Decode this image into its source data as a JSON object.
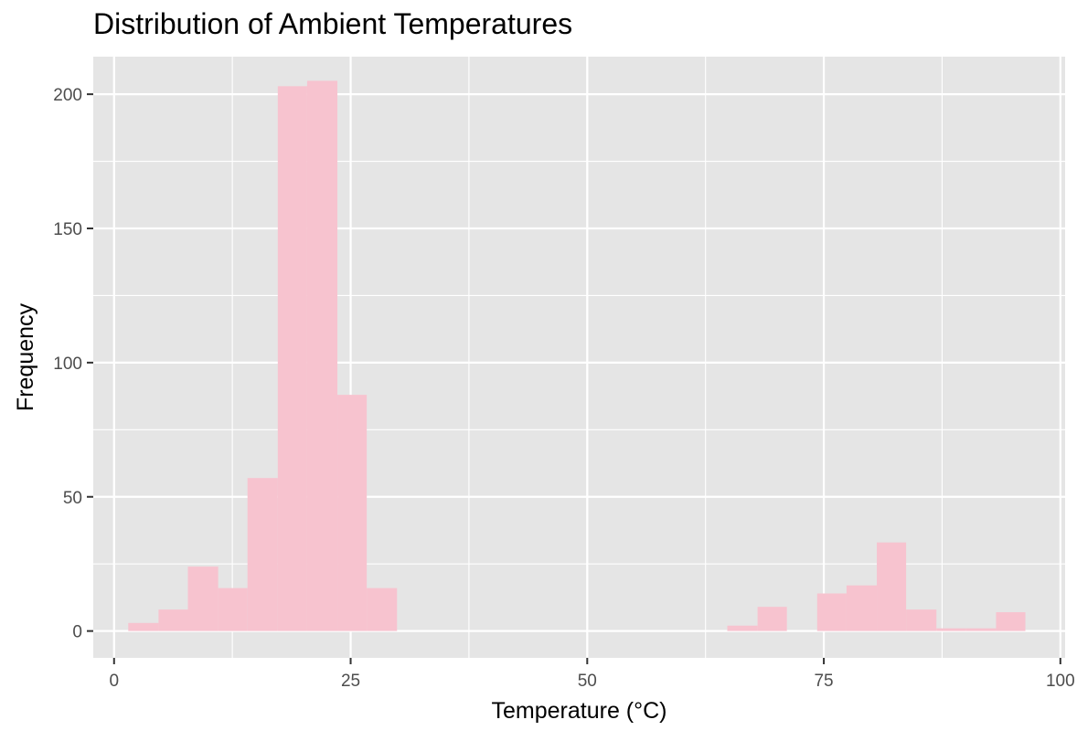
{
  "chart_data": {
    "type": "bar",
    "title": "Distribution of Ambient Temperatures",
    "xlabel": "Temperature (°C)",
    "ylabel": "Frequency",
    "xlim": [
      -2.2,
      100.5
    ],
    "ylim": [
      -10,
      214
    ],
    "x_ticks": [
      0,
      25,
      50,
      75,
      100
    ],
    "y_ticks": [
      0,
      50,
      100,
      150,
      200
    ],
    "grid": true,
    "colors": {
      "panel": "#E5E5E5",
      "grid": "#FFFFFF",
      "bar": "#F7C3CF",
      "text": "#4D4D4D"
    },
    "bins": [
      {
        "x0": 1.5,
        "x1": 4.7,
        "value": 3
      },
      {
        "x0": 4.7,
        "x1": 7.8,
        "value": 8
      },
      {
        "x0": 7.8,
        "x1": 11.0,
        "value": 24
      },
      {
        "x0": 11.0,
        "x1": 14.1,
        "value": 16
      },
      {
        "x0": 14.1,
        "x1": 17.3,
        "value": 57
      },
      {
        "x0": 17.3,
        "x1": 20.4,
        "value": 203
      },
      {
        "x0": 20.4,
        "x1": 23.6,
        "value": 205
      },
      {
        "x0": 23.6,
        "x1": 26.7,
        "value": 88
      },
      {
        "x0": 26.7,
        "x1": 29.9,
        "value": 16
      },
      {
        "x0": 64.8,
        "x1": 68.0,
        "value": 2
      },
      {
        "x0": 68.0,
        "x1": 71.1,
        "value": 9
      },
      {
        "x0": 74.3,
        "x1": 77.4,
        "value": 14
      },
      {
        "x0": 77.4,
        "x1": 80.6,
        "value": 17
      },
      {
        "x0": 80.6,
        "x1": 83.7,
        "value": 33
      },
      {
        "x0": 83.7,
        "x1": 86.9,
        "value": 8
      },
      {
        "x0": 86.9,
        "x1": 90.0,
        "value": 1
      },
      {
        "x0": 90.0,
        "x1": 93.2,
        "value": 1
      },
      {
        "x0": 93.2,
        "x1": 96.3,
        "value": 7
      }
    ]
  }
}
